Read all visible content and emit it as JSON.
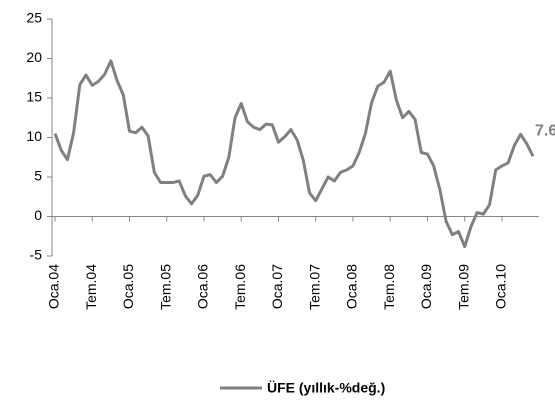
{
  "chart_data": {
    "type": "line",
    "categories": [
      "Oca.04",
      null,
      null,
      null,
      null,
      null,
      "Tem.04",
      null,
      null,
      null,
      null,
      null,
      "Oca.05",
      null,
      null,
      null,
      null,
      null,
      "Tem.05",
      null,
      null,
      null,
      null,
      null,
      "Oca.06",
      null,
      null,
      null,
      null,
      null,
      "Tem.06",
      null,
      null,
      null,
      null,
      null,
      "Oca.07",
      null,
      null,
      null,
      null,
      null,
      "Tem.07",
      null,
      null,
      null,
      null,
      null,
      "Oca.08",
      null,
      null,
      null,
      null,
      null,
      "Tem.08",
      null,
      null,
      null,
      null,
      null,
      "Oca.09",
      null,
      null,
      null,
      null,
      null,
      "Tem.09",
      null,
      null,
      null,
      null,
      null,
      "Oca.10",
      null,
      null,
      null,
      null,
      null
    ],
    "series": [
      {
        "name": "ÜFE (yıllık-%değ.)",
        "color": "#808080",
        "values": [
          10.5,
          8.4,
          7.2,
          10.6,
          16.7,
          17.9,
          16.6,
          17.1,
          18.0,
          19.7,
          17.2,
          15.4,
          10.8,
          10.6,
          11.3,
          10.2,
          5.6,
          4.3,
          4.3,
          4.3,
          4.5,
          2.6,
          1.6,
          2.7,
          5.1,
          5.3,
          4.3,
          5.1,
          7.5,
          12.5,
          14.3,
          12.0,
          11.3,
          11.0,
          11.7,
          11.6,
          9.4,
          10.1,
          11.0,
          9.7,
          7.1,
          3.0,
          2.0,
          3.5,
          5.0,
          4.5,
          5.6,
          5.9,
          6.4,
          8.1,
          10.5,
          14.4,
          16.5,
          17.0,
          18.4,
          14.7,
          12.5,
          13.3,
          12.3,
          8.1,
          7.9,
          6.4,
          3.4,
          -0.6,
          -2.3,
          -1.9,
          -3.8,
          -1.3,
          0.5,
          0.3,
          1.5,
          5.9,
          6.4,
          6.8,
          9.0,
          10.4,
          9.2,
          7.63
        ]
      }
    ],
    "ylim": [
      -5,
      25
    ],
    "yticks": [
      -5,
      0,
      5,
      10,
      15,
      20,
      25
    ],
    "legend": "bottom"
  }
}
